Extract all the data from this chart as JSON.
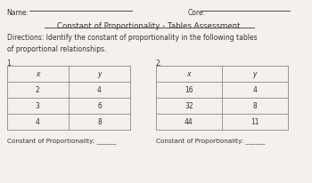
{
  "title": "Constant of Proportionality - Tables Assessment",
  "name_label": "Name:",
  "core_label": "Core:",
  "directions": "Directions: Identify the constant of proportionality in the following tables\nof proportional relationships.",
  "table1_label": "1.",
  "table2_label": "2.",
  "table1_headers": [
    "x",
    "y"
  ],
  "table1_rows": [
    [
      "2",
      "4"
    ],
    [
      "3",
      "6"
    ],
    [
      "4",
      "8"
    ]
  ],
  "table2_headers": [
    "x",
    "y"
  ],
  "table2_rows": [
    [
      "16",
      "4"
    ],
    [
      "32",
      "8"
    ],
    [
      "44",
      "11"
    ]
  ],
  "constant_label": "Constant of Proportionality: ______",
  "bg_color": "#f5f0eb",
  "table_line_color": "#888888",
  "text_color": "#333333",
  "font_family": "DejaVu Sans"
}
